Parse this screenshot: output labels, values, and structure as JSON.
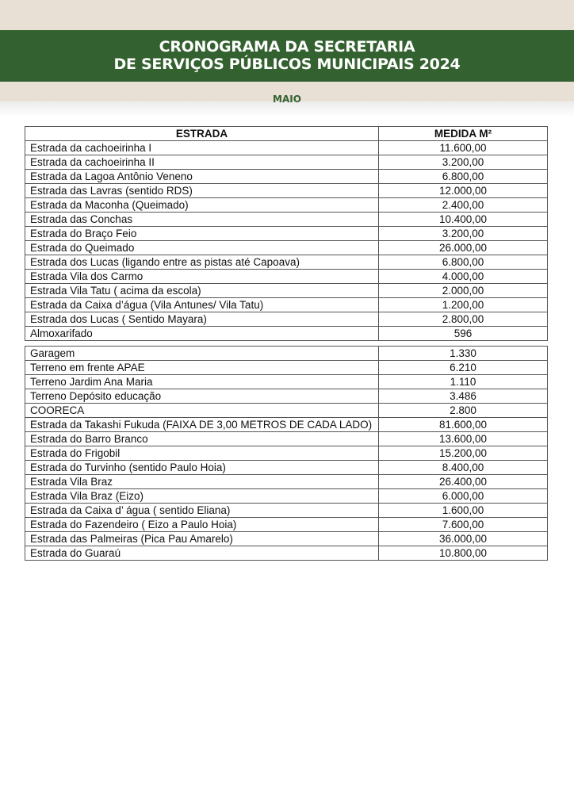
{
  "header": {
    "title_line1": "CRONOGRAMA DA SECRETARIA",
    "title_line2": "DE SERVIÇOS PÚBLICOS MUNICIPAIS 2024",
    "month": "MAIO",
    "colors": {
      "banner": "#33612f",
      "background": "#e9e0d5"
    }
  },
  "table": {
    "columns": [
      "ESTRADA",
      "MEDIDA M²"
    ],
    "section1": [
      [
        "Estrada da cachoeirinha I",
        "11.600,00"
      ],
      [
        "Estrada da cachoeirinha II",
        "3.200,00"
      ],
      [
        "Estrada da Lagoa Antônio Veneno",
        "6.800,00"
      ],
      [
        "Estrada das Lavras (sentido RDS)",
        "12.000,00"
      ],
      [
        "Estrada da Maconha (Queimado)",
        "2.400,00"
      ],
      [
        "Estrada das Conchas",
        "10.400,00"
      ],
      [
        "Estrada do Braço Feio",
        "3.200,00"
      ],
      [
        "Estrada do Queimado",
        "26.000,00"
      ],
      [
        "Estrada dos Lucas (ligando entre as pistas até Capoava)",
        "6.800,00"
      ],
      [
        "Estrada Vila dos Carmo",
        "4.000,00"
      ],
      [
        "Estrada Vila Tatu ( acima da escola)",
        "2.000,00"
      ],
      [
        "Estrada da Caixa d’água (Vila Antunes/ Vila Tatu)",
        "1.200,00"
      ],
      [
        "Estrada dos Lucas ( Sentido Mayara)",
        "2.800,00"
      ],
      [
        "Almoxarifado",
        "596"
      ]
    ],
    "section2": [
      [
        "Garagem",
        "1.330"
      ],
      [
        "Terreno em frente APAE",
        "6.210"
      ],
      [
        "Terreno Jardim Ana Maria",
        "1.110"
      ],
      [
        "Terreno Depósito educação",
        "3.486"
      ],
      [
        "COORECA",
        "2.800"
      ],
      [
        "Estrada da Takashi Fukuda (FAIXA DE 3,00 METROS DE CADA LADO)",
        "81.600,00"
      ],
      [
        "Estrada do Barro Branco",
        "13.600,00"
      ],
      [
        "Estrada do Frigobil",
        "15.200,00"
      ],
      [
        "Estrada do Turvinho (sentido Paulo Hoia)",
        "8.400,00"
      ],
      [
        "Estrada Vila Braz",
        "26.400,00"
      ],
      [
        "Estrada Vila Braz (Eizo)",
        "6.000,00"
      ],
      [
        "Estrada da Caixa d’ água ( sentido Eliana)",
        "1.600,00"
      ],
      [
        "Estrada do Fazendeiro ( Eizo a Paulo Hoia)",
        "7.600,00"
      ],
      [
        "Estrada das Palmeiras (Pica Pau Amarelo)",
        "36.000,00"
      ],
      [
        "Estrada do Guaraú",
        "10.800,00"
      ]
    ]
  }
}
